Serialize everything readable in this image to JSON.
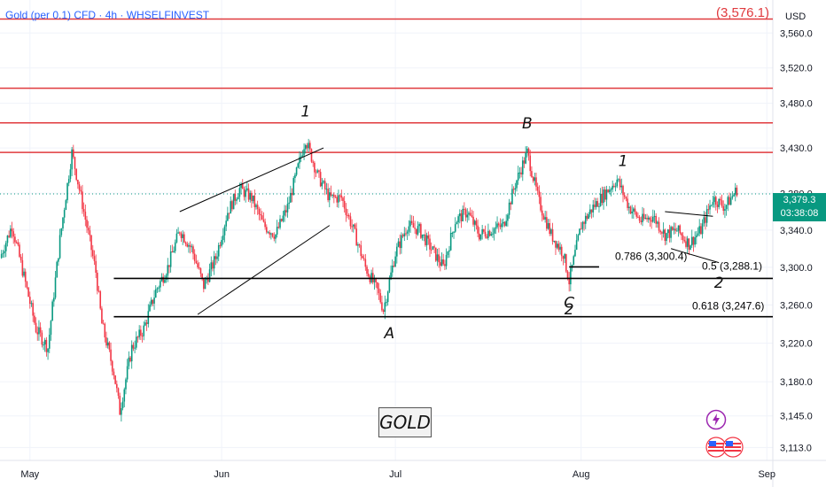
{
  "header": {
    "title": "Gold (per 0.1) CFD · 4h · WHSELFINVEST",
    "top_value": "(3,576.1)",
    "currency": "USD"
  },
  "current_price": {
    "price": "3,379.3",
    "countdown": "03:38:08",
    "value": 3379.3
  },
  "badge": {
    "label": "GOLD"
  },
  "colors": {
    "up": "#089981",
    "down": "#f23645",
    "resistance": "#e03a3e",
    "support": "#000000",
    "accent": "#2962ff",
    "flash": "#9c27b0"
  },
  "icons": [
    "lightning-icon",
    "us-flag-icon",
    "us-flag-icon"
  ],
  "chart_data": {
    "type": "candlestick",
    "timeframe": "4h",
    "ylim": [
      3100,
      3590
    ],
    "y_scale": "log",
    "yticks": [
      3113,
      3145,
      3180,
      3220,
      3260,
      3300,
      3340,
      3380,
      3430,
      3480,
      3520,
      3560
    ],
    "ytick_labels": [
      "3,113.0",
      "3,145.0",
      "3,180.0",
      "3,220.0",
      "3,260.0",
      "3,300.0",
      "3,340.0",
      "3,380.0",
      "3,430.0",
      "3,480.0",
      "3,520.0",
      "3,560.0"
    ],
    "x_domain": [
      "2025-04-26",
      "2025-09-02"
    ],
    "xticks": [
      {
        "label": "May",
        "date": "2025-05-01"
      },
      {
        "label": "Jun",
        "date": "2025-06-02"
      },
      {
        "label": "Jul",
        "date": "2025-07-01"
      },
      {
        "label": "Aug",
        "date": "2025-08-01"
      },
      {
        "label": "Sep",
        "date": "2025-09-01"
      }
    ],
    "price_path": [
      [
        "2025-04-26",
        3310
      ],
      [
        "2025-04-28",
        3345
      ],
      [
        "2025-04-30",
        3290
      ],
      [
        "2025-05-02",
        3235
      ],
      [
        "2025-05-04",
        3215
      ],
      [
        "2025-05-06",
        3330
      ],
      [
        "2025-05-08",
        3425
      ],
      [
        "2025-05-10",
        3360
      ],
      [
        "2025-05-12",
        3295
      ],
      [
        "2025-05-13",
        3240
      ],
      [
        "2025-05-15",
        3190
      ],
      [
        "2025-05-16",
        3150
      ],
      [
        "2025-05-18",
        3215
      ],
      [
        "2025-05-20",
        3235
      ],
      [
        "2025-05-22",
        3275
      ],
      [
        "2025-05-24",
        3300
      ],
      [
        "2025-05-26",
        3340
      ],
      [
        "2025-05-28",
        3320
      ],
      [
        "2025-05-30",
        3280
      ],
      [
        "2025-06-01",
        3310
      ],
      [
        "2025-06-03",
        3360
      ],
      [
        "2025-06-05",
        3385
      ],
      [
        "2025-06-07",
        3375
      ],
      [
        "2025-06-09",
        3345
      ],
      [
        "2025-06-11",
        3335
      ],
      [
        "2025-06-13",
        3365
      ],
      [
        "2025-06-16",
        3440
      ],
      [
        "2025-06-18",
        3400
      ],
      [
        "2025-06-20",
        3375
      ],
      [
        "2025-06-22",
        3375
      ],
      [
        "2025-06-24",
        3340
      ],
      [
        "2025-06-26",
        3300
      ],
      [
        "2025-06-28",
        3275
      ],
      [
        "2025-06-29",
        3255
      ],
      [
        "2025-07-01",
        3315
      ],
      [
        "2025-07-03",
        3345
      ],
      [
        "2025-07-05",
        3340
      ],
      [
        "2025-07-07",
        3320
      ],
      [
        "2025-07-09",
        3300
      ],
      [
        "2025-07-11",
        3350
      ],
      [
        "2025-07-13",
        3360
      ],
      [
        "2025-07-15",
        3335
      ],
      [
        "2025-07-17",
        3340
      ],
      [
        "2025-07-19",
        3345
      ],
      [
        "2025-07-21",
        3390
      ],
      [
        "2025-07-23",
        3425
      ],
      [
        "2025-07-25",
        3370
      ],
      [
        "2025-07-27",
        3335
      ],
      [
        "2025-07-29",
        3315
      ],
      [
        "2025-07-30",
        3285
      ],
      [
        "2025-08-01",
        3345
      ],
      [
        "2025-08-03",
        3365
      ],
      [
        "2025-08-05",
        3380
      ],
      [
        "2025-08-07",
        3395
      ],
      [
        "2025-08-09",
        3365
      ],
      [
        "2025-08-11",
        3350
      ],
      [
        "2025-08-13",
        3355
      ],
      [
        "2025-08-15",
        3335
      ],
      [
        "2025-08-17",
        3340
      ],
      [
        "2025-08-19",
        3325
      ],
      [
        "2025-08-21",
        3340
      ],
      [
        "2025-08-23",
        3375
      ],
      [
        "2025-08-25",
        3365
      ],
      [
        "2025-08-27",
        3384
      ]
    ],
    "resistance_levels": [
      3576.1,
      3497,
      3458,
      3425
    ],
    "fib_levels": [
      {
        "label": "0.5 (3,288.1)",
        "value": 3288.1,
        "from": "2025-05-15",
        "to": "2025-09-02"
      },
      {
        "label": "0.618 (3,247.6)",
        "value": 3247.6,
        "from": "2025-05-15",
        "to": "2025-09-02"
      },
      {
        "label": "0.786 (3,300.4)",
        "value": 3300.4,
        "from": "2025-07-30",
        "to": "2025-08-04"
      }
    ],
    "trendlines": [
      {
        "from": [
          "2025-05-26",
          3360
        ],
        "to": [
          "2025-06-19",
          3430
        ]
      },
      {
        "from": [
          "2025-05-29",
          3250
        ],
        "to": [
          "2025-06-20",
          3345
        ]
      },
      {
        "from": [
          "2025-08-15",
          3360
        ],
        "to": [
          "2025-08-23",
          3355
        ]
      },
      {
        "from": [
          "2025-08-16",
          3320
        ],
        "to": [
          "2025-08-24",
          3305
        ]
      }
    ],
    "wave_labels": [
      {
        "text": "1",
        "date": "2025-06-16",
        "price": 3465
      },
      {
        "text": "A",
        "date": "2025-06-30",
        "price": 3225
      },
      {
        "text": "B",
        "date": "2025-07-23",
        "price": 3452
      },
      {
        "text": "C",
        "date": "2025-07-30",
        "price": 3257
      },
      {
        "text": "2",
        "date": "2025-07-30",
        "price": 3250
      },
      {
        "text": "1",
        "date": "2025-08-08",
        "price": 3410
      },
      {
        "text": "2",
        "date": "2025-08-24",
        "price": 3278
      }
    ]
  }
}
